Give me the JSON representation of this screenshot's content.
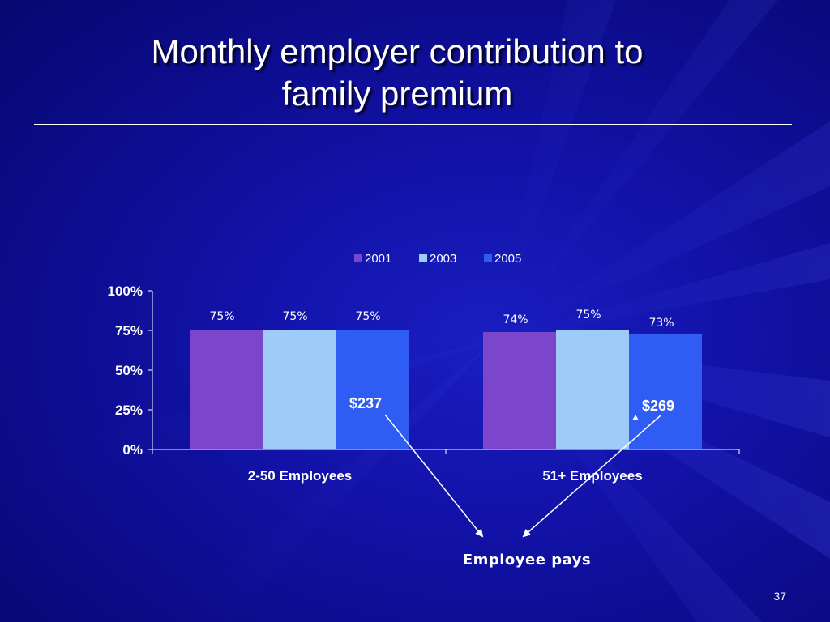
{
  "slide": {
    "title_line1": "Monthly employer contribution to",
    "title_line2": "family premium",
    "slide_number": "37"
  },
  "colors": {
    "background": "#0b0b86",
    "series_2001": "#7b45cc",
    "series_2003": "#9ecbf7",
    "series_2005": "#2f5cf2",
    "text": "#ffffff"
  },
  "chart_data": {
    "type": "bar",
    "categories": [
      "2-50 Employees",
      "51+ Employees"
    ],
    "series": [
      {
        "name": "2001",
        "values": [
          75,
          74
        ],
        "labels": [
          "75%",
          "74%"
        ]
      },
      {
        "name": "2003",
        "values": [
          75,
          75
        ],
        "labels": [
          "75%",
          "75%"
        ]
      },
      {
        "name": "2005",
        "values": [
          75,
          73
        ],
        "labels": [
          "75%",
          "73%"
        ]
      }
    ],
    "y_ticks": [
      {
        "value": 0,
        "label": "0%"
      },
      {
        "value": 25,
        "label": "25%"
      },
      {
        "value": 50,
        "label": "50%"
      },
      {
        "value": 75,
        "label": "75%"
      },
      {
        "value": 100,
        "label": "100%"
      }
    ],
    "ylim": [
      0,
      100
    ],
    "grid": false,
    "legend_position": "top",
    "annotations": {
      "amount_small": "$237",
      "amount_large": "$269",
      "callout": "Employee pays"
    }
  }
}
